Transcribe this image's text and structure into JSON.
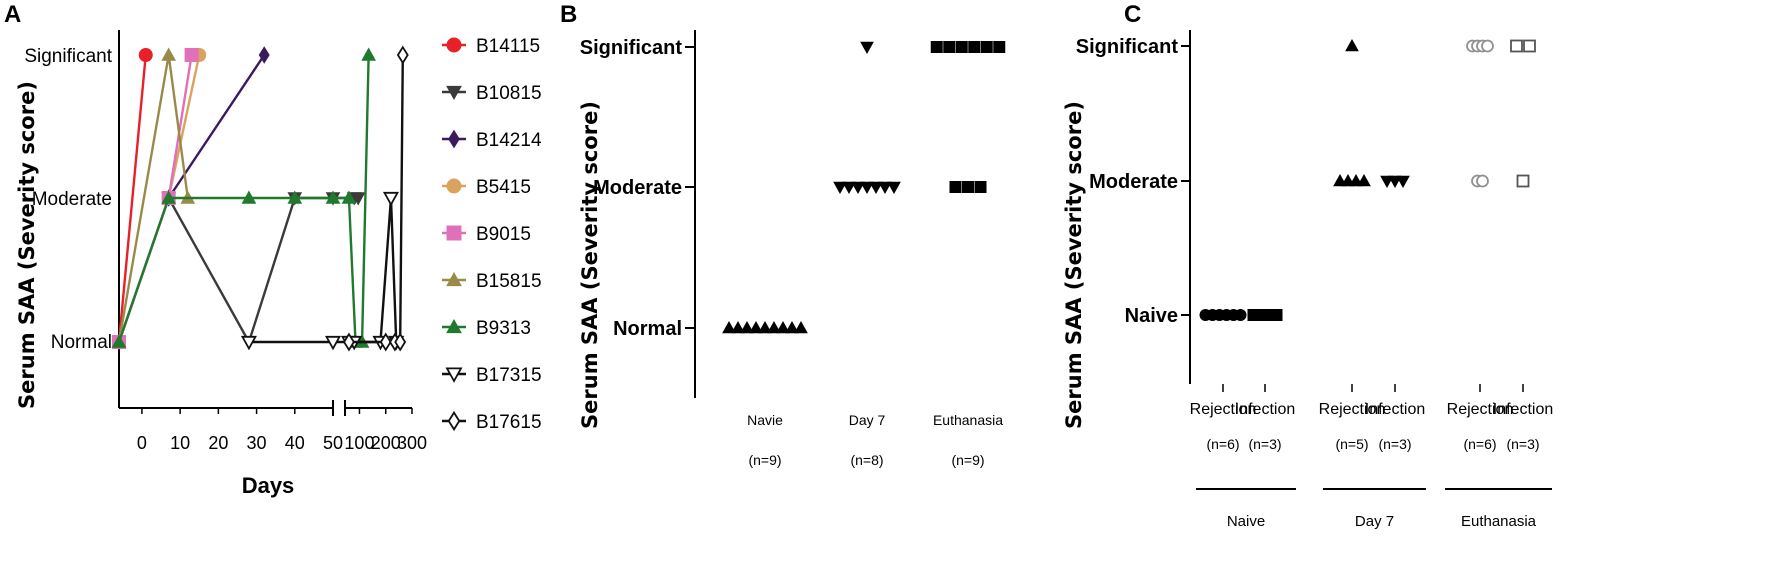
{
  "panels": {
    "A": "A",
    "B": "B",
    "C": "C"
  },
  "chart_data": [
    {
      "panel": "A",
      "type": "line",
      "title": "",
      "ylabel": "Serum SAA (Severity score)",
      "xlabel": "Days",
      "ylevels": [
        "Normal",
        "Moderate",
        "Significant"
      ],
      "x_segments": [
        {
          "ticks": [
            "0",
            "10",
            "20",
            "30",
            "40",
            "50"
          ],
          "range": [
            -6,
            50
          ]
        },
        {
          "ticks": [
            "100",
            "200",
            "300"
          ],
          "range": [
            45,
            300
          ]
        }
      ],
      "x_tick_values": [
        0,
        10,
        20,
        30,
        40,
        50,
        100,
        200,
        300
      ],
      "axis_break": true,
      "series": [
        {
          "name": "B14115",
          "color": "#e8202a",
          "marker": "circle-filled",
          "points": [
            [
              -6,
              0
            ],
            [
              1,
              2
            ]
          ]
        },
        {
          "name": "B10815",
          "color": "#3a3a3a",
          "marker": "tri-down-filled",
          "points": [
            [
              -6,
              0
            ],
            [
              7,
              1
            ],
            [
              28,
              0
            ],
            [
              40,
              1
            ],
            [
              50,
              1
            ],
            [
              80,
              1
            ],
            [
              95,
              1
            ]
          ]
        },
        {
          "name": "B14214",
          "color": "#3b1a5e",
          "marker": "diamond-filled",
          "points": [
            [
              -6,
              0
            ],
            [
              7,
              1
            ],
            [
              32,
              2
            ]
          ]
        },
        {
          "name": "B5415",
          "color": "#d9a25e",
          "marker": "circle-filled",
          "points": [
            [
              -6,
              0
            ],
            [
              7,
              1
            ],
            [
              15,
              2
            ]
          ]
        },
        {
          "name": "B9015",
          "color": "#e070b8",
          "marker": "square-filled",
          "points": [
            [
              -6,
              0
            ],
            [
              7,
              1
            ],
            [
              13,
              2
            ]
          ]
        },
        {
          "name": "B15815",
          "color": "#9a8a4a",
          "marker": "tri-up-filled",
          "points": [
            [
              -6,
              0
            ],
            [
              7,
              2
            ],
            [
              12,
              1
            ]
          ]
        },
        {
          "name": "B9313",
          "color": "#1f7a2e",
          "marker": "tri-up-filled",
          "points": [
            [
              -6,
              0
            ],
            [
              7,
              1
            ],
            [
              28,
              1
            ],
            [
              40,
              1
            ],
            [
              50,
              1
            ],
            [
              60,
              1
            ],
            [
              85,
              0
            ],
            [
              110,
              0
            ],
            [
              135,
              2
            ]
          ]
        },
        {
          "name": "B17315",
          "color": "#111111",
          "marker": "tri-down-open",
          "points": [
            [
              28,
              0
            ],
            [
              50,
              0
            ],
            [
              60,
              0
            ],
            [
              80,
              0
            ],
            [
              180,
              0
            ],
            [
              220,
              1
            ],
            [
              240,
              0
            ]
          ]
        },
        {
          "name": "B17615",
          "color": "#111111",
          "marker": "diamond-open",
          "points": [
            [
              60,
              0
            ],
            [
              200,
              0
            ],
            [
              235,
              0
            ],
            [
              255,
              0
            ],
            [
              265,
              2
            ]
          ]
        }
      ]
    },
    {
      "panel": "B",
      "type": "scatter",
      "title": "",
      "ylabel": "Serum SAA (Severity score)",
      "ylevels": [
        "Normal",
        "Moderate",
        "Significant"
      ],
      "categories": [
        {
          "label": "Navie",
          "n": "(n=9)"
        },
        {
          "label": "Day 7",
          "n": "(n=8)"
        },
        {
          "label": "Euthanasia",
          "n": "(n=9)"
        }
      ],
      "groups": [
        {
          "category": 0,
          "level": 0,
          "count": 9,
          "marker": "tri-up-filled"
        },
        {
          "category": 1,
          "level": 1,
          "count": 7,
          "marker": "tri-down-filled"
        },
        {
          "category": 1,
          "level": 2,
          "count": 1,
          "marker": "tri-down-filled"
        },
        {
          "category": 2,
          "level": 1,
          "count": 3,
          "marker": "square-filled"
        },
        {
          "category": 2,
          "level": 2,
          "count": 6,
          "marker": "square-filled"
        }
      ]
    },
    {
      "panel": "C",
      "type": "scatter",
      "title": "",
      "ylabel": "Serum SAA (Severity score)",
      "ylevels": [
        "Naive",
        "Moderate",
        "Significant"
      ],
      "categories": [
        {
          "label": "Rejection",
          "n": "(n=6)"
        },
        {
          "label": "Infection",
          "n": "(n=3)"
        },
        {
          "label": "Rejection",
          "n": "(n=5)"
        },
        {
          "label": "Infection",
          "n": "(n=3)"
        },
        {
          "label": "Rejection",
          "n": "(n=6)"
        },
        {
          "label": "Infection",
          "n": "(n=3)"
        }
      ],
      "category_groups": [
        "Naive",
        "Day 7",
        "Euthanasia"
      ],
      "groups": [
        {
          "category": 0,
          "level": 0,
          "count": 6,
          "marker": "circle-filled",
          "color": "#000000"
        },
        {
          "category": 1,
          "level": 0,
          "count": 3,
          "marker": "square-filled",
          "color": "#000000"
        },
        {
          "category": 2,
          "level": 1,
          "count": 4,
          "marker": "tri-up-filled",
          "color": "#000000"
        },
        {
          "category": 2,
          "level": 2,
          "count": 1,
          "marker": "tri-up-filled",
          "color": "#000000"
        },
        {
          "category": 3,
          "level": 1,
          "count": 3,
          "marker": "tri-down-filled",
          "color": "#000000"
        },
        {
          "category": 4,
          "level": 1,
          "count": 2,
          "marker": "circle-open",
          "color": "#909090"
        },
        {
          "category": 4,
          "level": 2,
          "count": 4,
          "marker": "circle-open",
          "color": "#909090"
        },
        {
          "category": 5,
          "level": 1,
          "count": 1,
          "marker": "square-open",
          "color": "#555555"
        },
        {
          "category": 5,
          "level": 2,
          "count": 2,
          "marker": "square-open",
          "color": "#555555"
        }
      ]
    }
  ]
}
